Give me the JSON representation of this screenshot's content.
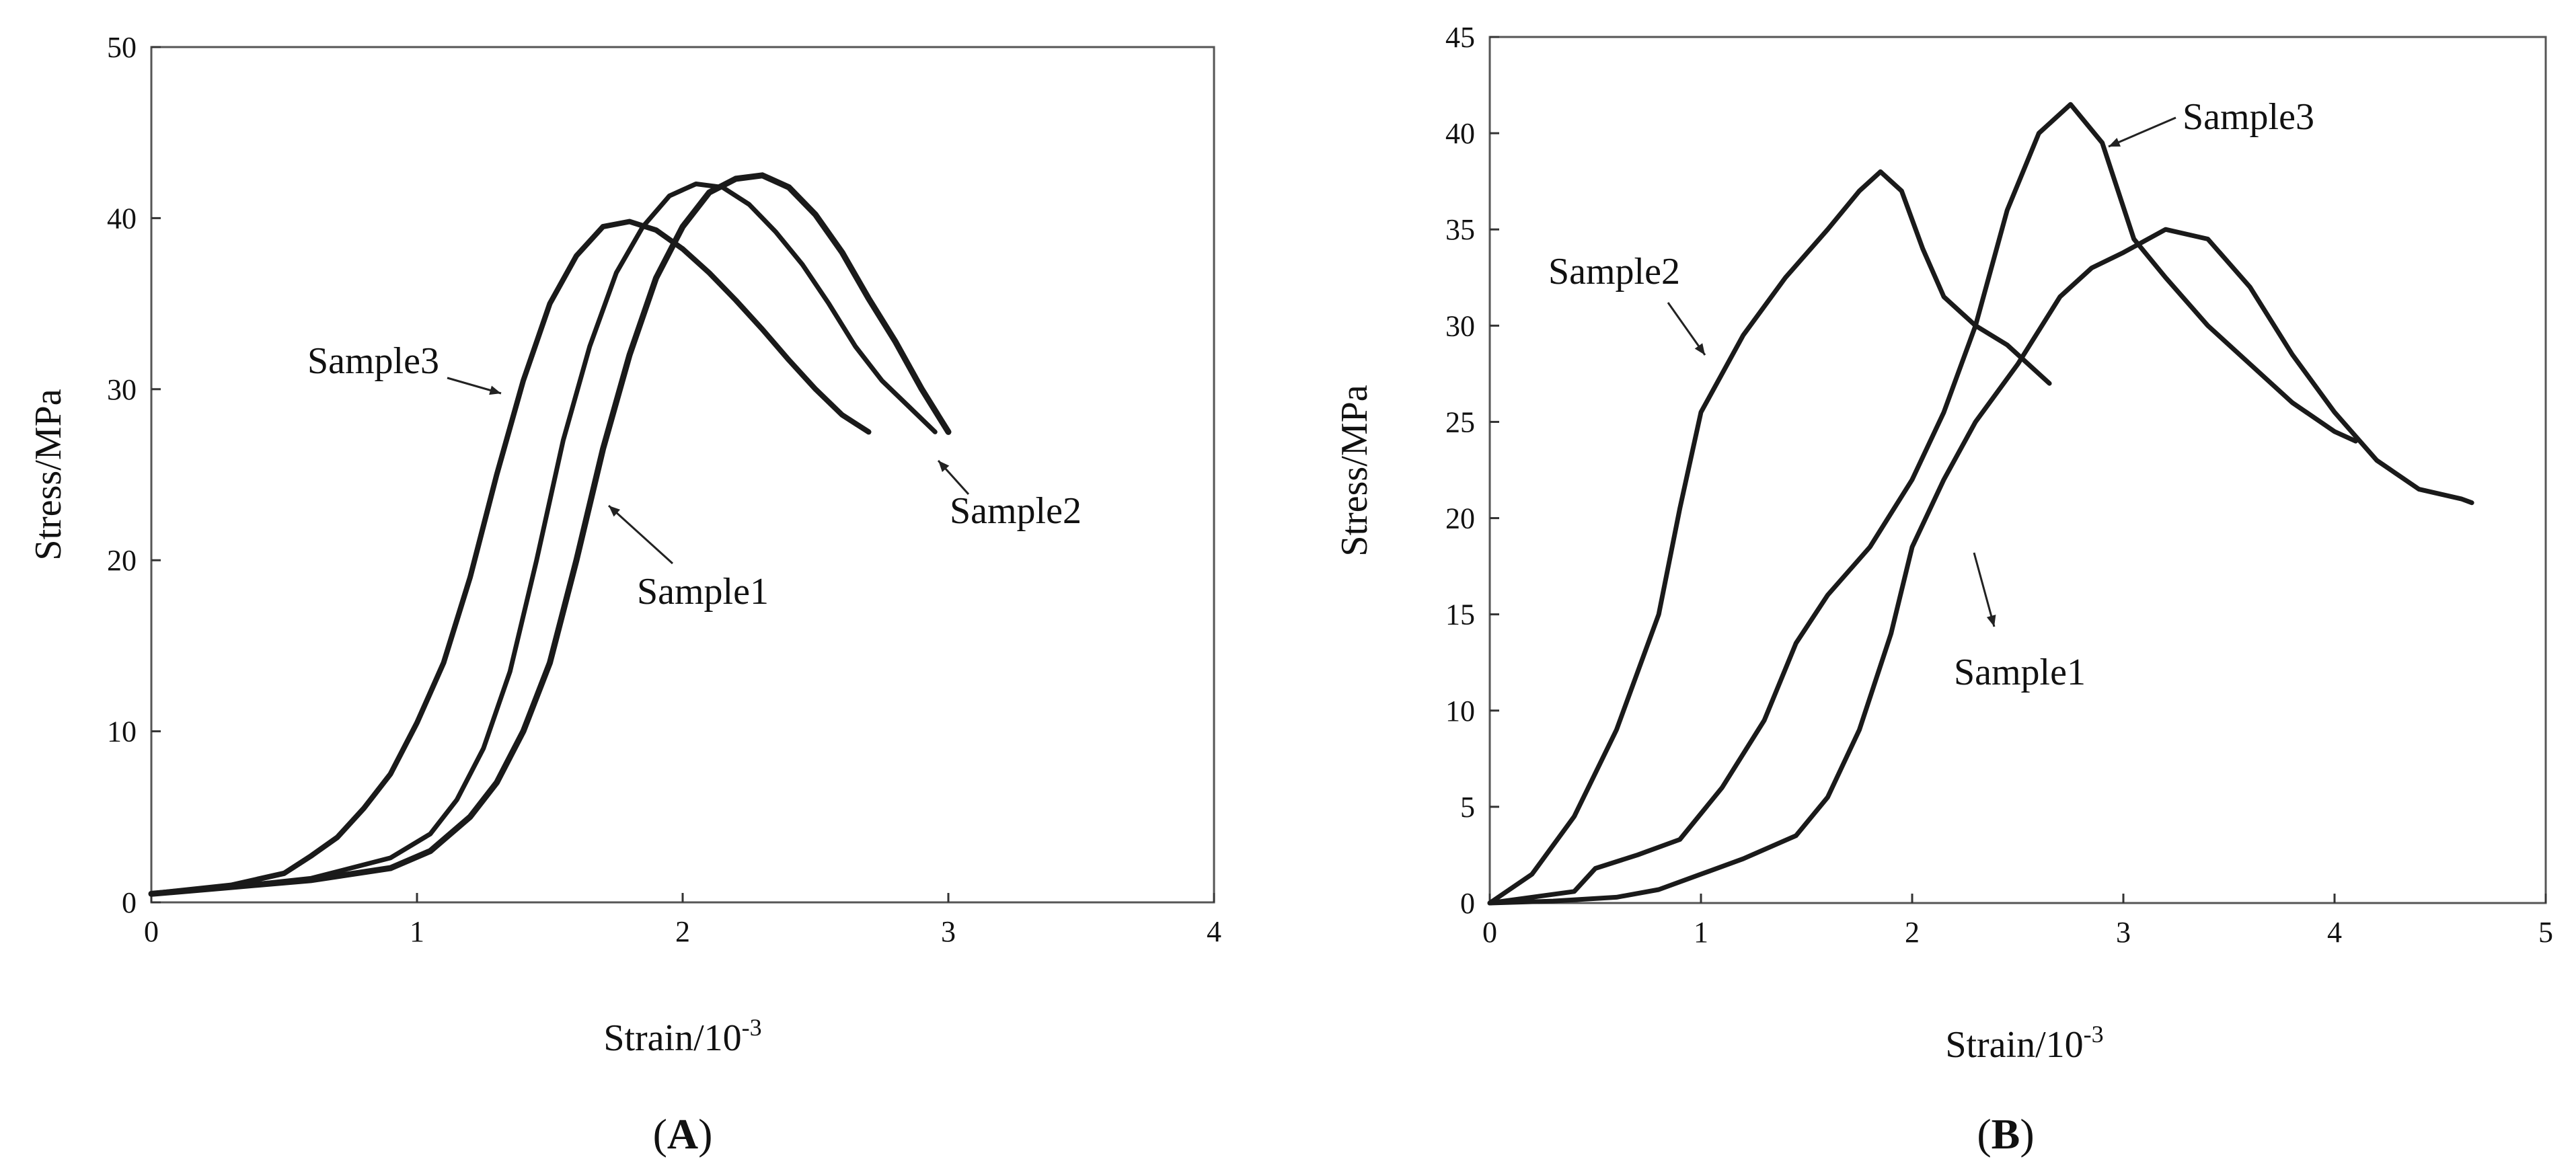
{
  "chart_data": [
    {
      "panel": "A",
      "type": "line",
      "title": "",
      "xlabel": "Strain/10",
      "xlabel_sup": "-3",
      "ylabel": "Stress/MPa",
      "xlim": [
        0,
        4
      ],
      "ylim": [
        0,
        50
      ],
      "xticks": [
        0,
        1,
        2,
        3,
        4
      ],
      "yticks": [
        0,
        10,
        20,
        30,
        40,
        50
      ],
      "series": [
        {
          "name": "Sample1",
          "x": [
            0,
            0.3,
            0.6,
            0.9,
            1.05,
            1.2,
            1.3,
            1.4,
            1.5,
            1.6,
            1.7,
            1.8,
            1.9,
            2.0,
            2.1,
            2.2,
            2.3,
            2.4,
            2.5,
            2.6,
            2.7,
            2.8,
            2.9,
            3.0
          ],
          "y": [
            0.5,
            0.9,
            1.3,
            2.0,
            3.0,
            5.0,
            7.0,
            10.0,
            14.0,
            20.0,
            26.5,
            32.0,
            36.5,
            39.5,
            41.5,
            42.3,
            42.5,
            41.8,
            40.2,
            38.0,
            35.3,
            32.8,
            30.0,
            27.5
          ]
        },
        {
          "name": "Sample2",
          "x": [
            0,
            0.3,
            0.6,
            0.9,
            1.05,
            1.15,
            1.25,
            1.35,
            1.45,
            1.55,
            1.65,
            1.75,
            1.85,
            1.95,
            2.05,
            2.15,
            2.25,
            2.35,
            2.45,
            2.55,
            2.65,
            2.75,
            2.85,
            2.95
          ],
          "y": [
            0.5,
            0.9,
            1.4,
            2.6,
            4.0,
            6.0,
            9.0,
            13.5,
            20.0,
            27.0,
            32.5,
            36.8,
            39.5,
            41.3,
            42.0,
            41.8,
            40.8,
            39.2,
            37.3,
            35.0,
            32.5,
            30.5,
            29.0,
            27.5
          ]
        },
        {
          "name": "Sample3",
          "x": [
            0,
            0.3,
            0.5,
            0.6,
            0.7,
            0.8,
            0.9,
            1.0,
            1.1,
            1.2,
            1.3,
            1.4,
            1.5,
            1.6,
            1.7,
            1.8,
            1.9,
            2.0,
            2.1,
            2.2,
            2.3,
            2.4,
            2.5,
            2.6,
            2.7
          ],
          "y": [
            0.5,
            1.0,
            1.7,
            2.7,
            3.8,
            5.5,
            7.5,
            10.5,
            14.0,
            19.0,
            25.0,
            30.5,
            35.0,
            37.8,
            39.5,
            39.8,
            39.3,
            38.2,
            36.8,
            35.2,
            33.5,
            31.7,
            30.0,
            28.5,
            27.5
          ]
        }
      ],
      "annotations": [
        {
          "text": "Sample3",
          "series": "Sample3"
        },
        {
          "text": "Sample2",
          "series": "Sample2"
        },
        {
          "text": "Sample1",
          "series": "Sample1"
        }
      ]
    },
    {
      "panel": "B",
      "type": "line",
      "title": "",
      "xlabel": "Strain/10",
      "xlabel_sup": "-3",
      "ylabel": "Stress/MPa",
      "xlim": [
        0,
        5
      ],
      "ylim": [
        0,
        45
      ],
      "xticks": [
        0,
        1,
        2,
        3,
        4,
        5
      ],
      "yticks": [
        0,
        5,
        10,
        15,
        20,
        25,
        30,
        35,
        40,
        45
      ],
      "series": [
        {
          "name": "Sample1",
          "x": [
            0,
            0.3,
            0.6,
            0.8,
            1.0,
            1.2,
            1.45,
            1.6,
            1.75,
            1.9,
            2.0,
            2.15,
            2.3,
            2.5,
            2.7,
            2.85,
            3.0,
            3.2,
            3.4,
            3.6,
            3.8,
            4.0,
            4.2,
            4.4,
            4.6,
            4.65
          ],
          "y": [
            0,
            0.1,
            0.3,
            0.7,
            1.5,
            2.3,
            3.5,
            5.5,
            9.0,
            14.0,
            18.5,
            22.0,
            25.0,
            28.0,
            31.5,
            33.0,
            33.8,
            35.0,
            34.5,
            32.0,
            28.5,
            25.5,
            23.0,
            21.5,
            21.0,
            20.8
          ]
        },
        {
          "name": "Sample2",
          "x": [
            0,
            0.2,
            0.4,
            0.6,
            0.8,
            0.9,
            1.0,
            1.2,
            1.4,
            1.6,
            1.75,
            1.85,
            1.95,
            2.05,
            2.15,
            2.3,
            2.45,
            2.65
          ],
          "y": [
            0,
            1.5,
            4.5,
            9.0,
            15.0,
            20.5,
            25.5,
            29.5,
            32.5,
            35.0,
            37.0,
            38.0,
            37.0,
            34.0,
            31.5,
            30.0,
            29.0,
            27.0
          ]
        },
        {
          "name": "Sample3",
          "x": [
            0,
            0.4,
            0.5,
            0.7,
            0.9,
            1.1,
            1.3,
            1.45,
            1.6,
            1.8,
            2.0,
            2.15,
            2.3,
            2.45,
            2.6,
            2.75,
            2.9,
            3.05,
            3.2,
            3.4,
            3.6,
            3.8,
            4.0,
            4.1
          ],
          "y": [
            0,
            0.6,
            1.8,
            2.5,
            3.3,
            6.0,
            9.5,
            13.5,
            16.0,
            18.5,
            22.0,
            25.5,
            30.0,
            36.0,
            40.0,
            41.5,
            39.5,
            34.5,
            32.5,
            30.0,
            28.0,
            26.0,
            24.5,
            24.0
          ]
        }
      ],
      "annotations": [
        {
          "text": "Sample3",
          "series": "Sample3"
        },
        {
          "text": "Sample2",
          "series": "Sample2"
        },
        {
          "text": "Sample1",
          "series": "Sample1"
        }
      ]
    }
  ],
  "panel_labels": {
    "A": "A",
    "B": "B"
  }
}
